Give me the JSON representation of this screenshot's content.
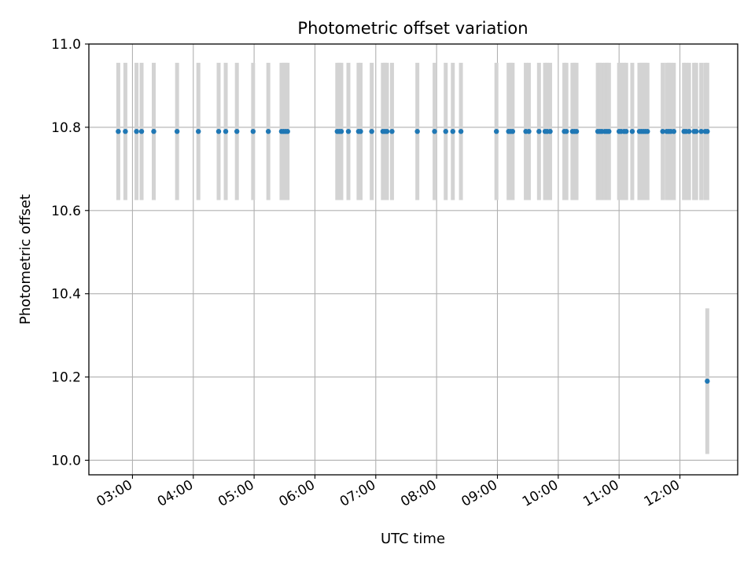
{
  "chart_data": {
    "type": "scatter",
    "title": "Photometric offset variation",
    "xlabel": "UTC time",
    "ylabel": "Photometric offset",
    "x_tick_labels": [
      "03:00",
      "04:00",
      "05:00",
      "06:00",
      "07:00",
      "08:00",
      "09:00",
      "10:00",
      "11:00",
      "12:00"
    ],
    "x_tick_hours": [
      3,
      4,
      5,
      6,
      7,
      8,
      9,
      10,
      11,
      12
    ],
    "xlim": [
      "02:17",
      "12:57"
    ],
    "ylim": [
      9.965,
      11.0
    ],
    "y_tick_values": [
      10.0,
      10.2,
      10.4,
      10.6,
      10.8,
      11.0
    ],
    "y_tick_labels": [
      "10.0",
      "10.2",
      "10.4",
      "10.6",
      "10.8",
      "11.0"
    ],
    "grid": true,
    "marker_color": "#1f77b4",
    "errorbar_color": "#d3d3d3",
    "error_half_width": 0.165,
    "points": [
      {
        "x": "02:46",
        "y": 10.79
      },
      {
        "x": "02:53",
        "y": 10.79
      },
      {
        "x": "03:04",
        "y": 10.79
      },
      {
        "x": "03:09",
        "y": 10.79
      },
      {
        "x": "03:21",
        "y": 10.79
      },
      {
        "x": "03:44",
        "y": 10.79
      },
      {
        "x": "04:05",
        "y": 10.79
      },
      {
        "x": "04:25",
        "y": 10.79
      },
      {
        "x": "04:32",
        "y": 10.79
      },
      {
        "x": "04:43",
        "y": 10.79
      },
      {
        "x": "04:59",
        "y": 10.79
      },
      {
        "x": "05:14",
        "y": 10.79
      },
      {
        "x": "05:27",
        "y": 10.79
      },
      {
        "x": "05:29",
        "y": 10.79
      },
      {
        "x": "05:31",
        "y": 10.79
      },
      {
        "x": "05:33",
        "y": 10.79
      },
      {
        "x": "06:22",
        "y": 10.79
      },
      {
        "x": "06:24",
        "y": 10.79
      },
      {
        "x": "06:26",
        "y": 10.79
      },
      {
        "x": "06:33",
        "y": 10.79
      },
      {
        "x": "06:43",
        "y": 10.79
      },
      {
        "x": "06:45",
        "y": 10.79
      },
      {
        "x": "06:56",
        "y": 10.79
      },
      {
        "x": "07:07",
        "y": 10.79
      },
      {
        "x": "07:09",
        "y": 10.79
      },
      {
        "x": "07:11",
        "y": 10.79
      },
      {
        "x": "07:16",
        "y": 10.79
      },
      {
        "x": "07:41",
        "y": 10.79
      },
      {
        "x": "07:58",
        "y": 10.79
      },
      {
        "x": "08:09",
        "y": 10.79
      },
      {
        "x": "08:16",
        "y": 10.79
      },
      {
        "x": "08:24",
        "y": 10.79
      },
      {
        "x": "08:59",
        "y": 10.79
      },
      {
        "x": "09:11",
        "y": 10.79
      },
      {
        "x": "09:13",
        "y": 10.79
      },
      {
        "x": "09:15",
        "y": 10.79
      },
      {
        "x": "09:28",
        "y": 10.79
      },
      {
        "x": "09:31",
        "y": 10.79
      },
      {
        "x": "09:41",
        "y": 10.79
      },
      {
        "x": "09:47",
        "y": 10.79
      },
      {
        "x": "09:49",
        "y": 10.79
      },
      {
        "x": "09:52",
        "y": 10.79
      },
      {
        "x": "10:06",
        "y": 10.79
      },
      {
        "x": "10:08",
        "y": 10.79
      },
      {
        "x": "10:14",
        "y": 10.79
      },
      {
        "x": "10:16",
        "y": 10.79
      },
      {
        "x": "10:18",
        "y": 10.79
      },
      {
        "x": "10:39",
        "y": 10.79
      },
      {
        "x": "10:41",
        "y": 10.79
      },
      {
        "x": "10:43",
        "y": 10.79
      },
      {
        "x": "10:46",
        "y": 10.79
      },
      {
        "x": "10:48",
        "y": 10.79
      },
      {
        "x": "10:50",
        "y": 10.79
      },
      {
        "x": "11:00",
        "y": 10.79
      },
      {
        "x": "11:02",
        "y": 10.79
      },
      {
        "x": "11:05",
        "y": 10.79
      },
      {
        "x": "11:07",
        "y": 10.79
      },
      {
        "x": "11:13",
        "y": 10.79
      },
      {
        "x": "11:20",
        "y": 10.79
      },
      {
        "x": "11:22",
        "y": 10.79
      },
      {
        "x": "11:24",
        "y": 10.79
      },
      {
        "x": "11:26",
        "y": 10.79
      },
      {
        "x": "11:28",
        "y": 10.79
      },
      {
        "x": "11:43",
        "y": 10.79
      },
      {
        "x": "11:47",
        "y": 10.79
      },
      {
        "x": "11:49",
        "y": 10.79
      },
      {
        "x": "11:51",
        "y": 10.79
      },
      {
        "x": "11:54",
        "y": 10.79
      },
      {
        "x": "12:04",
        "y": 10.79
      },
      {
        "x": "12:06",
        "y": 10.79
      },
      {
        "x": "12:09",
        "y": 10.79
      },
      {
        "x": "12:14",
        "y": 10.79
      },
      {
        "x": "12:16",
        "y": 10.79
      },
      {
        "x": "12:21",
        "y": 10.79
      },
      {
        "x": "12:25",
        "y": 10.79
      },
      {
        "x": "12:27",
        "y": 10.79
      },
      {
        "x": "12:27",
        "y": 10.19,
        "err": 0.175
      }
    ]
  }
}
